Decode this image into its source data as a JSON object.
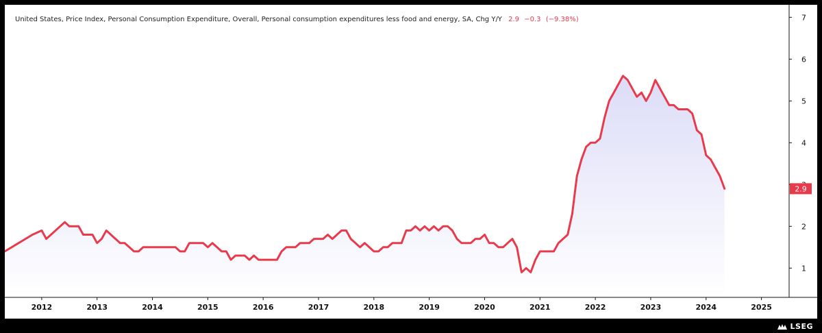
{
  "legend": {
    "title": "United States, Price Index, Personal Consumption Expenditure, Overall, Personal consumption expenditures less food and energy, SA, Chg Y/Y",
    "last_value": "2.9",
    "change": "−0.3",
    "change_pct": "(−9.38%)"
  },
  "branding": {
    "logo_text": "LSEG"
  },
  "colors": {
    "line": "#e83a4b",
    "fill_top": "#dcdcf8",
    "fill_bottom": "#ffffff",
    "axis": "#111111"
  },
  "chart_data": {
    "type": "area",
    "title": "United States, Price Index, Personal Consumption Expenditure, Overall, Personal consumption expenditures less food and energy, SA, Chg Y/Y",
    "y_ticks": [
      1,
      2,
      3,
      4,
      5,
      6,
      7
    ],
    "x_ticks": [
      "2012",
      "2013",
      "2014",
      "2015",
      "2016",
      "2017",
      "2018",
      "2019",
      "2020",
      "2021",
      "2022",
      "2023",
      "2024",
      "2025"
    ],
    "xlim": [
      "2011-05",
      "2025-07"
    ],
    "ylim": [
      0.3,
      7.3
    ],
    "last_value_label": "2.9",
    "series": [
      {
        "points": [
          [
            "2011-05",
            1.4
          ],
          [
            "2011-08",
            1.6
          ],
          [
            "2011-11",
            1.8
          ],
          [
            "2012-01",
            1.9
          ],
          [
            "2012-02",
            1.7
          ],
          [
            "2012-03",
            1.8
          ],
          [
            "2012-05",
            2.0
          ],
          [
            "2012-06",
            2.1
          ],
          [
            "2012-07",
            2.0
          ],
          [
            "2012-09",
            2.0
          ],
          [
            "2012-10",
            1.8
          ],
          [
            "2012-12",
            1.8
          ],
          [
            "2013-01",
            1.6
          ],
          [
            "2013-02",
            1.7
          ],
          [
            "2013-03",
            1.9
          ],
          [
            "2013-05",
            1.7
          ],
          [
            "2013-06",
            1.6
          ],
          [
            "2013-07",
            1.6
          ],
          [
            "2013-09",
            1.4
          ],
          [
            "2013-10",
            1.4
          ],
          [
            "2013-11",
            1.5
          ],
          [
            "2014-03",
            1.5
          ],
          [
            "2014-06",
            1.5
          ],
          [
            "2014-07",
            1.4
          ],
          [
            "2014-08",
            1.4
          ],
          [
            "2014-09",
            1.6
          ],
          [
            "2014-12",
            1.6
          ],
          [
            "2015-01",
            1.5
          ],
          [
            "2015-02",
            1.6
          ],
          [
            "2015-04",
            1.4
          ],
          [
            "2015-05",
            1.4
          ],
          [
            "2015-06",
            1.2
          ],
          [
            "2015-07",
            1.3
          ],
          [
            "2015-09",
            1.3
          ],
          [
            "2015-10",
            1.2
          ],
          [
            "2015-11",
            1.3
          ],
          [
            "2015-12",
            1.2
          ],
          [
            "2016-01",
            1.2
          ],
          [
            "2016-04",
            1.2
          ],
          [
            "2016-05",
            1.4
          ],
          [
            "2016-06",
            1.5
          ],
          [
            "2016-08",
            1.5
          ],
          [
            "2016-09",
            1.6
          ],
          [
            "2016-11",
            1.6
          ],
          [
            "2016-12",
            1.7
          ],
          [
            "2017-02",
            1.7
          ],
          [
            "2017-03",
            1.8
          ],
          [
            "2017-04",
            1.7
          ],
          [
            "2017-06",
            1.9
          ],
          [
            "2017-07",
            1.9
          ],
          [
            "2017-08",
            1.7
          ],
          [
            "2017-09",
            1.6
          ],
          [
            "2017-10",
            1.5
          ],
          [
            "2017-11",
            1.6
          ],
          [
            "2018-01",
            1.4
          ],
          [
            "2018-02",
            1.4
          ],
          [
            "2018-03",
            1.5
          ],
          [
            "2018-04",
            1.5
          ],
          [
            "2018-05",
            1.6
          ],
          [
            "2018-07",
            1.6
          ],
          [
            "2018-08",
            1.9
          ],
          [
            "2018-09",
            1.9
          ],
          [
            "2018-10",
            2.0
          ],
          [
            "2018-11",
            1.9
          ],
          [
            "2018-12",
            2.0
          ],
          [
            "2019-01",
            1.9
          ],
          [
            "2019-02",
            2.0
          ],
          [
            "2019-03",
            1.9
          ],
          [
            "2019-04",
            2.0
          ],
          [
            "2019-05",
            2.0
          ],
          [
            "2019-06",
            1.9
          ],
          [
            "2019-07",
            1.7
          ],
          [
            "2019-08",
            1.6
          ],
          [
            "2019-10",
            1.6
          ],
          [
            "2019-11",
            1.7
          ],
          [
            "2019-12",
            1.7
          ],
          [
            "2020-01",
            1.8
          ],
          [
            "2020-02",
            1.6
          ],
          [
            "2020-03",
            1.6
          ],
          [
            "2020-04",
            1.5
          ],
          [
            "2020-05",
            1.5
          ],
          [
            "2020-06",
            1.6
          ],
          [
            "2020-07",
            1.7
          ],
          [
            "2020-08",
            1.5
          ],
          [
            "2020-09",
            0.9
          ],
          [
            "2020-10",
            1.0
          ],
          [
            "2020-11",
            0.9
          ],
          [
            "2020-12",
            1.2
          ],
          [
            "2021-01",
            1.4
          ],
          [
            "2021-03",
            1.4
          ],
          [
            "2021-04",
            1.4
          ],
          [
            "2021-05",
            1.6
          ],
          [
            "2021-07",
            1.8
          ],
          [
            "2021-08",
            2.3
          ],
          [
            "2021-09",
            3.2
          ],
          [
            "2021-10",
            3.6
          ],
          [
            "2021-11",
            3.9
          ],
          [
            "2021-12",
            4.0
          ],
          [
            "2022-01",
            4.0
          ],
          [
            "2022-02",
            4.1
          ],
          [
            "2022-03",
            4.6
          ],
          [
            "2022-04",
            5.0
          ],
          [
            "2022-05",
            5.2
          ],
          [
            "2022-06",
            5.4
          ],
          [
            "2022-07",
            5.6
          ],
          [
            "2022-08",
            5.5
          ],
          [
            "2022-09",
            5.3
          ],
          [
            "2022-10",
            5.1
          ],
          [
            "2022-11",
            5.2
          ],
          [
            "2022-12",
            5.0
          ],
          [
            "2023-01",
            5.2
          ],
          [
            "2023-02",
            5.5
          ],
          [
            "2023-03",
            5.3
          ],
          [
            "2023-04",
            5.1
          ],
          [
            "2023-05",
            4.9
          ],
          [
            "2023-06",
            4.9
          ],
          [
            "2023-07",
            4.8
          ],
          [
            "2023-09",
            4.8
          ],
          [
            "2023-10",
            4.7
          ],
          [
            "2023-11",
            4.3
          ],
          [
            "2023-12",
            4.2
          ],
          [
            "2024-01",
            3.7
          ],
          [
            "2024-02",
            3.6
          ],
          [
            "2024-03",
            3.4
          ],
          [
            "2024-04",
            3.2
          ],
          [
            "2024-05",
            2.9
          ]
        ]
      }
    ]
  }
}
